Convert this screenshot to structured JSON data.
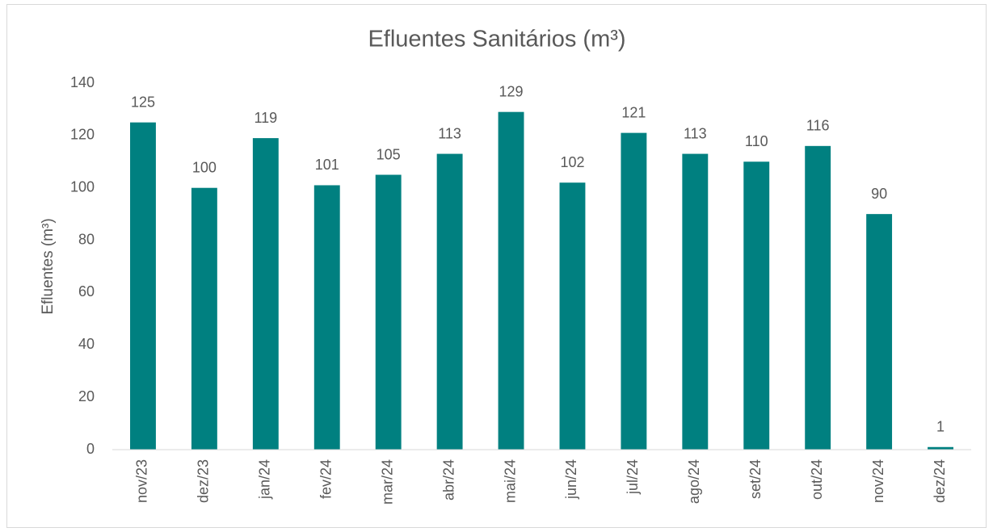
{
  "chart_data": {
    "type": "bar",
    "title": "Efluentes Sanitários (m³)",
    "y_label": "Efluentes (m³)",
    "categories": [
      "nov/23",
      "dez/23",
      "jan/24",
      "fev/24",
      "mar/24",
      "abr/24",
      "mai/24",
      "jun/24",
      "jul/24",
      "ago/24",
      "set/24",
      "out/24",
      "nov/24",
      "dez/24"
    ],
    "values": [
      125,
      100,
      119,
      101,
      105,
      113,
      129,
      102,
      121,
      113,
      110,
      116,
      90,
      1
    ],
    "color": "#008080",
    "ylim": [
      0,
      140
    ],
    "yticks": [
      0,
      20,
      40,
      60,
      80,
      100,
      120,
      140
    ],
    "grid": false
  }
}
